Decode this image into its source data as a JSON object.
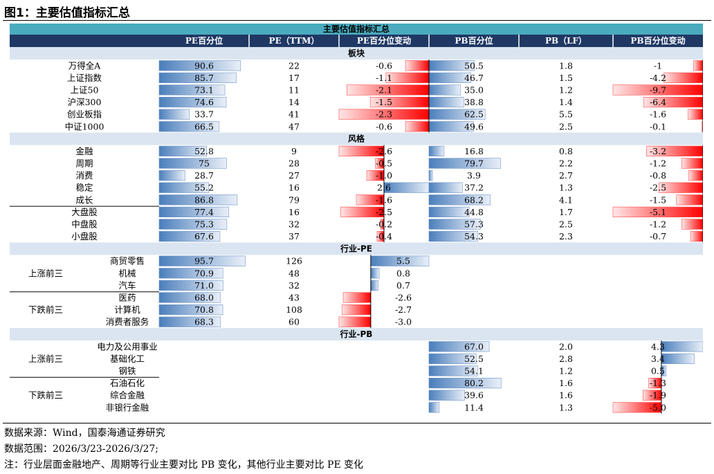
{
  "title": "图1：主要估值指标汇总",
  "table_title": "主要估值指标汇总",
  "headers": [
    "PE百分位",
    "PE（TTM）",
    "PE百分位变动",
    "PB百分位",
    "PB（LF）",
    "PB百分位变动"
  ],
  "colors": {
    "header_navy": "#1f3864",
    "band": "#dbe5f1",
    "title_band": "#4aabbf",
    "bar_blue": "#4a7ebb",
    "bar_red": "#ff0000"
  },
  "sections": [
    {
      "title": "板块",
      "rows": [
        {
          "name": "万得全A",
          "pe_pct": "90.6",
          "pe": "22",
          "pe_chg": "-0.6",
          "pb_pct": "50.5",
          "pb": "1.8",
          "pb_chg": "-1"
        },
        {
          "name": "上证指数",
          "pe_pct": "85.7",
          "pe": "17",
          "pe_chg": "-1.1",
          "pb_pct": "46.7",
          "pb": "1.5",
          "pb_chg": "-4.2"
        },
        {
          "name": "上证50",
          "pe_pct": "73.1",
          "pe": "11",
          "pe_chg": "-2.1",
          "pb_pct": "35.0",
          "pb": "1.2",
          "pb_chg": "-9.7"
        },
        {
          "name": "沪深300",
          "pe_pct": "74.6",
          "pe": "14",
          "pe_chg": "-1.5",
          "pb_pct": "38.8",
          "pb": "1.4",
          "pb_chg": "-6.4"
        },
        {
          "name": "创业板指",
          "pe_pct": "33.7",
          "pe": "41",
          "pe_chg": "-2.3",
          "pb_pct": "62.5",
          "pb": "5.5",
          "pb_chg": "-1.6"
        },
        {
          "name": "中证1000",
          "pe_pct": "66.5",
          "pe": "47",
          "pe_chg": "-0.6",
          "pb_pct": "49.6",
          "pb": "2.5",
          "pb_chg": "-0.1"
        }
      ]
    },
    {
      "title": "风格",
      "rows": [
        {
          "name": "金融",
          "pe_pct": "52.8",
          "pe": "9",
          "pe_chg": "-2.6",
          "pb_pct": "16.8",
          "pb": "0.8",
          "pb_chg": "-3.2"
        },
        {
          "name": "周期",
          "pe_pct": "75",
          "pe": "28",
          "pe_chg": "-0.5",
          "pb_pct": "79.7",
          "pb": "2.2",
          "pb_chg": "-1.2"
        },
        {
          "name": "消费",
          "pe_pct": "28.7",
          "pe": "27",
          "pe_chg": "-1.0",
          "pb_pct": "3.9",
          "pb": "2.7",
          "pb_chg": "-0.8"
        },
        {
          "name": "稳定",
          "pe_pct": "55.2",
          "pe": "16",
          "pe_chg": "2.6",
          "pb_pct": "37.2",
          "pb": "1.3",
          "pb_chg": "-2.5"
        },
        {
          "name": "成长",
          "pe_pct": "86.8",
          "pe": "79",
          "pe_chg": "-1.6",
          "pb_pct": "68.2",
          "pb": "4.1",
          "pb_chg": "-1.5"
        },
        {
          "name": "大盘股",
          "pe_pct": "77.4",
          "pe": "16",
          "pe_chg": "-2.5",
          "pb_pct": "44.8",
          "pb": "1.7",
          "pb_chg": "-5.1"
        },
        {
          "name": "中盘股",
          "pe_pct": "75.3",
          "pe": "32",
          "pe_chg": "-0.2",
          "pb_pct": "57.3",
          "pb": "2.5",
          "pb_chg": "-1.2"
        },
        {
          "name": "小盘股",
          "pe_pct": "67.6",
          "pe": "37",
          "pe_chg": "-0.4",
          "pb_pct": "54.3",
          "pb": "2.3",
          "pb_chg": "-0.7"
        }
      ]
    },
    {
      "title": "行业-PE",
      "groups": [
        {
          "label": "上涨前三",
          "rows": [
            {
              "name": "商贸零售",
              "pe_pct": "95.7",
              "pe": "126",
              "pe_chg": "5.5"
            },
            {
              "name": "机械",
              "pe_pct": "70.9",
              "pe": "48",
              "pe_chg": "0.8"
            },
            {
              "name": "汽车",
              "pe_pct": "71.0",
              "pe": "32",
              "pe_chg": "0.7"
            }
          ]
        },
        {
          "label": "下跌前三",
          "rows": [
            {
              "name": "医药",
              "pe_pct": "68.0",
              "pe": "43",
              "pe_chg": "-2.6"
            },
            {
              "name": "计算机",
              "pe_pct": "70.8",
              "pe": "108",
              "pe_chg": "-2.7"
            },
            {
              "name": "消费者服务",
              "pe_pct": "68.3",
              "pe": "60",
              "pe_chg": "-3.0"
            }
          ]
        }
      ]
    },
    {
      "title": "行业-PB",
      "groups": [
        {
          "label": "上涨前三",
          "rows": [
            {
              "name": "电力及公用事业",
              "pb_pct": "67.0",
              "pb": "2.0",
              "pb_chg": "4.3"
            },
            {
              "name": "基础化工",
              "pb_pct": "52.5",
              "pb": "2.8",
              "pb_chg": "3.4"
            },
            {
              "name": "钢铁",
              "pb_pct": "54.1",
              "pb": "1.2",
              "pb_chg": "0.5"
            }
          ]
        },
        {
          "label": "下跌前三",
          "rows": [
            {
              "name": "石油石化",
              "pb_pct": "80.2",
              "pb": "1.6",
              "pb_chg": "-1.3"
            },
            {
              "name": "综合金融",
              "pb_pct": "39.6",
              "pb": "1.6",
              "pb_chg": "-1.9"
            },
            {
              "name": "非银行金融",
              "pb_pct": "11.4",
              "pb": "1.3",
              "pb_chg": "-5.0"
            }
          ]
        }
      ]
    }
  ],
  "notes": [
    "数据来源：Wind，国泰海通证券研究",
    "数据范围：2026/3/23-2026/3/27;",
    "注：行业层面金融地产、周期等行业主要对比 PB 变化，其他行业主要对比 PE 变化"
  ],
  "chart_data": {
    "type": "table",
    "title": "主要估值指标汇总",
    "columns": [
      "PE百分位",
      "PE（TTM）",
      "PE百分位变动",
      "PB百分位",
      "PB（LF）",
      "PB百分位变动"
    ],
    "bar_scales": {
      "pe_pct": [
        0,
        100
      ],
      "pe_chg": [
        -3.0,
        5.5
      ],
      "pb_pct": [
        0,
        100
      ],
      "pb_chg": [
        -9.7,
        4.3
      ]
    }
  }
}
